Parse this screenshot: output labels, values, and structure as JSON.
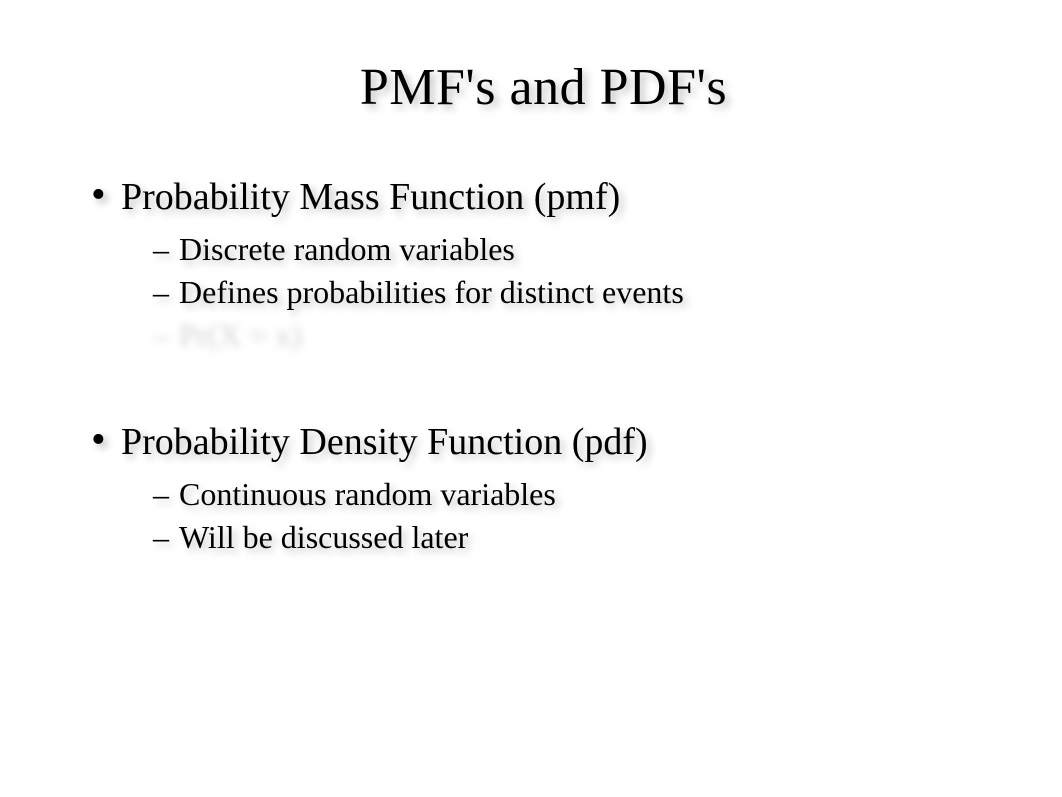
{
  "slide": {
    "title": "PMF's and PDF's",
    "title_fontsize": 52,
    "level1_fontsize": 38,
    "level2_fontsize": 32,
    "text_color": "#000000",
    "background_color": "#ffffff",
    "shadow_color": "rgba(0,0,0,0.25)",
    "font_family": "Times New Roman",
    "bullets": [
      {
        "text": "Probability Mass Function (pmf)",
        "subs": [
          {
            "text": "Discrete random variables",
            "blurred": false
          },
          {
            "text": "Defines probabilities for distinct events",
            "blurred": false
          },
          {
            "text": "Pr(X = x)",
            "blurred": true
          }
        ]
      },
      {
        "text": "Probability Density Function (pdf)",
        "subs": [
          {
            "text": "Continuous random variables",
            "blurred": false
          },
          {
            "text": "Will be discussed later",
            "blurred": false
          }
        ]
      }
    ]
  }
}
